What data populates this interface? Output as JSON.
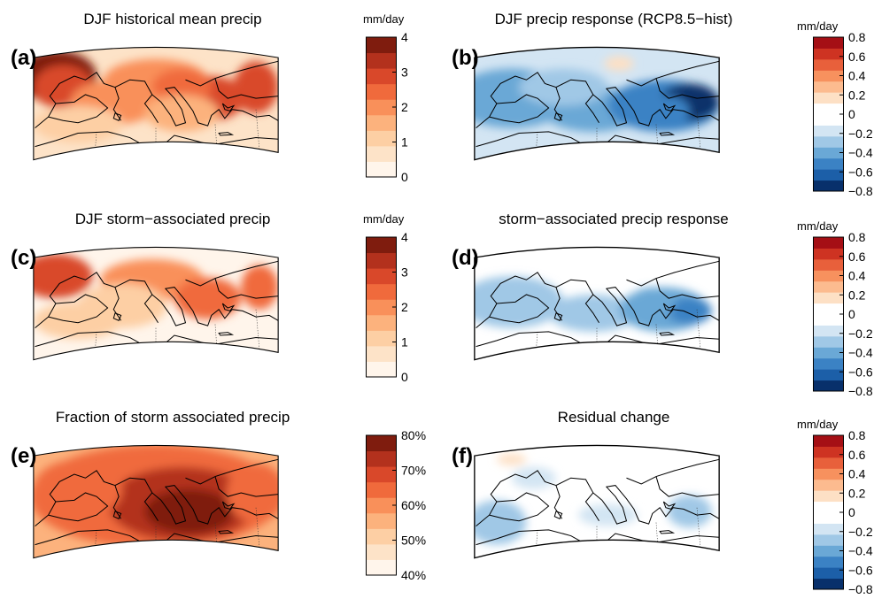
{
  "panels": [
    {
      "id": "a",
      "label": "(a)",
      "title": "DJF historical mean precip",
      "unit": "mm/day",
      "kind": "abs",
      "ticks": [
        "4",
        "3",
        "2",
        "1",
        "0"
      ],
      "colors": "reds9",
      "field": "hist"
    },
    {
      "id": "b",
      "label": "(b)",
      "title": "DJF precip response (RCP8.5−hist)",
      "unit": "mm/day",
      "kind": "div",
      "ticks": [
        "0.8",
        "0.6",
        "0.4",
        "0.2",
        "0",
        "−0.2",
        "−0.4",
        "−0.6",
        "−0.8"
      ],
      "colors": "div",
      "field": "resp"
    },
    {
      "id": "c",
      "label": "(c)",
      "title": "DJF storm−associated precip",
      "unit": "mm/day",
      "kind": "abs",
      "ticks": [
        "4",
        "3",
        "2",
        "1",
        "0"
      ],
      "colors": "reds9",
      "field": "storm"
    },
    {
      "id": "d",
      "label": "(d)",
      "title": "storm−associated precip response",
      "unit": "mm/day",
      "kind": "div",
      "ticks": [
        "0.8",
        "0.6",
        "0.4",
        "0.2",
        "0",
        "−0.2",
        "−0.4",
        "−0.6",
        "−0.8"
      ],
      "colors": "div",
      "field": "sresp"
    },
    {
      "id": "e",
      "label": "(e)",
      "title": "Fraction of storm associated precip",
      "unit": "",
      "kind": "pct",
      "ticks": [
        "80%",
        "70%",
        "60%",
        "50%",
        "40%"
      ],
      "colors": "reds9",
      "field": "frac"
    },
    {
      "id": "f",
      "label": "(f)",
      "title": "Residual change",
      "unit": "mm/day",
      "kind": "div",
      "ticks": [
        "0.8",
        "0.6",
        "0.4",
        "0.2",
        "0",
        "−0.2",
        "−0.4",
        "−0.6",
        "−0.8"
      ],
      "colors": "div",
      "field": "resid"
    }
  ],
  "palettes": {
    "reds9": [
      "#fff5eb",
      "#fde3c8",
      "#fdcfa4",
      "#fcb27d",
      "#f9905a",
      "#f06a3c",
      "#d9482a",
      "#b3311d",
      "#7f1c0e"
    ],
    "div": [
      "#08306b",
      "#1c5fa8",
      "#3b82c4",
      "#6aa8d6",
      "#a0c8e6",
      "#d3e5f3",
      "#ffffff",
      "#ffffff",
      "#fde0c5",
      "#fcbb8f",
      "#f7915e",
      "#e8603b",
      "#ce3322",
      "#a50f15"
    ]
  }
}
